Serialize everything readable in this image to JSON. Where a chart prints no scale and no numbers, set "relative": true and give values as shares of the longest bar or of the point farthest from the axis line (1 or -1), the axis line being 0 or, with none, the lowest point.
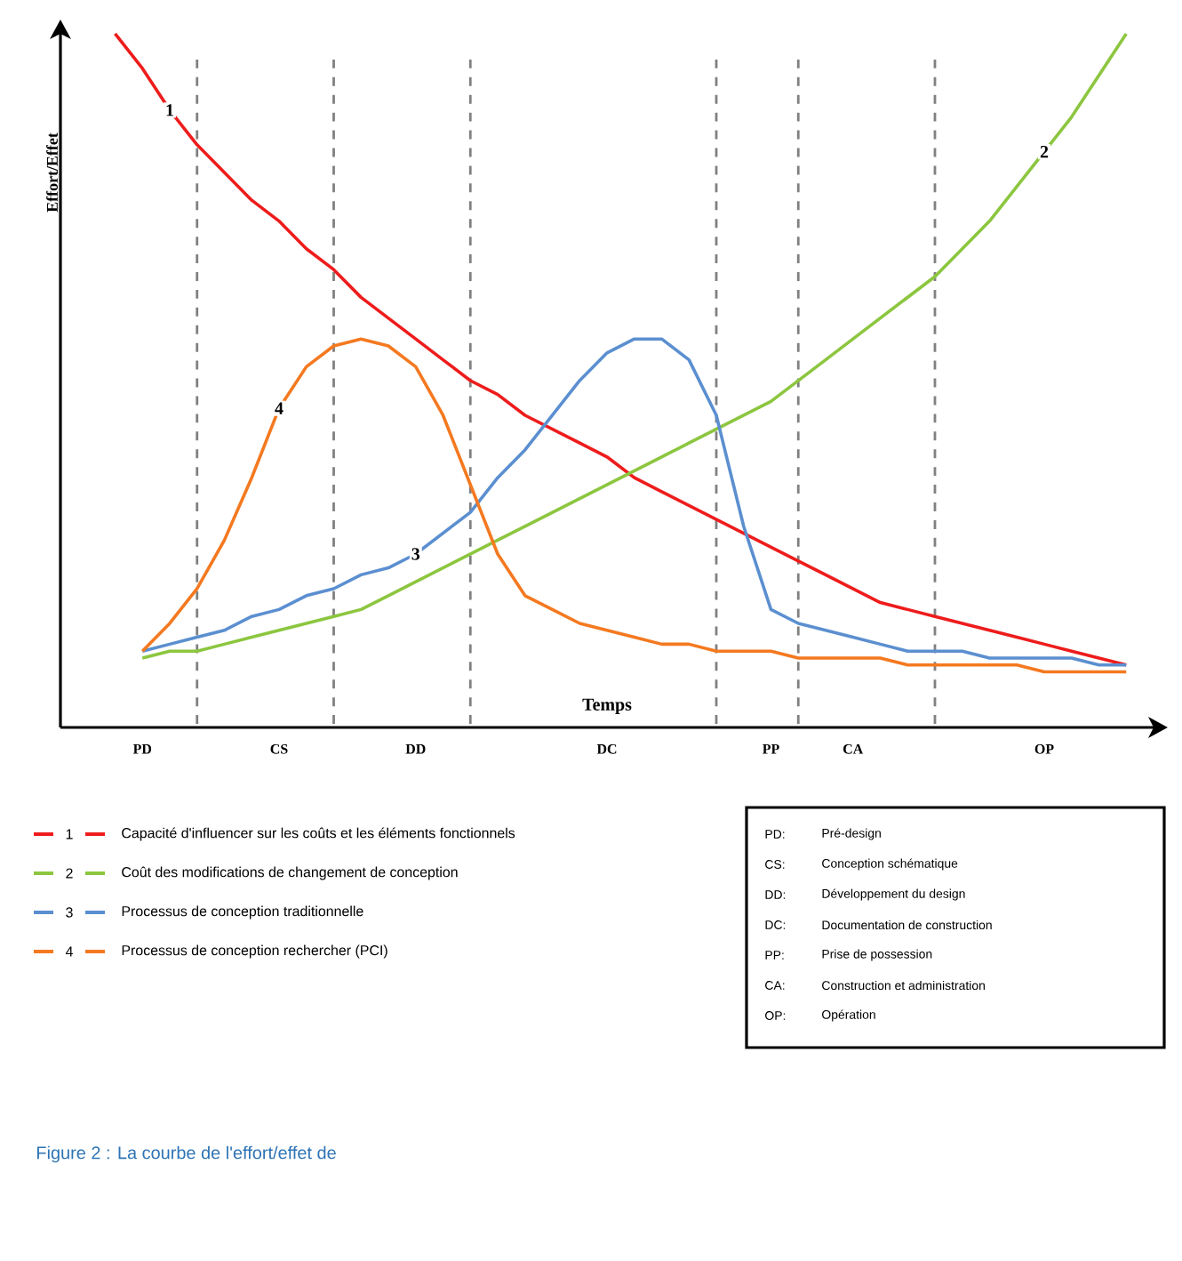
{
  "chart_data": {
    "type": "line",
    "relative": true,
    "xlabel": "Temps",
    "ylabel": "Effort/Effet",
    "categories": [
      null,
      "PD",
      null,
      null,
      null,
      null,
      "CS",
      null,
      null,
      null,
      null,
      "DD",
      null,
      null,
      null,
      null,
      null,
      null,
      "DC",
      null,
      null,
      null,
      null,
      null,
      "PP",
      null,
      null,
      "CA",
      null,
      null,
      null,
      null,
      null,
      null,
      "OP",
      null,
      null,
      null
    ],
    "legend": "bottom",
    "marker": "none",
    "line_style": "solid",
    "grid": "x",
    "series": [
      {
        "name": "Capacité d'influencer sur les coûts et les éléments fonctionnels",
        "color": "#ee1c1c",
        "values": [
          1.0,
          0.95,
          0.89,
          0.84,
          0.8,
          0.76,
          0.73,
          0.69,
          0.66,
          0.62,
          0.59,
          0.56,
          0.53,
          0.5,
          0.48,
          0.45,
          0.43,
          0.41,
          0.39,
          0.36,
          0.34,
          0.32,
          0.3,
          0.28,
          0.26,
          0.24,
          0.22,
          0.2,
          0.18,
          0.17,
          0.16,
          0.15,
          0.14,
          0.13,
          0.12,
          0.11,
          0.1,
          0.09
        ]
      },
      {
        "name": "Coût des modifications de changement de conception",
        "color": "#8cc63f",
        "values": [
          null,
          0.1,
          0.11,
          0.11,
          0.12,
          0.13,
          0.14,
          0.15,
          0.16,
          0.17,
          0.19,
          0.21,
          0.23,
          0.25,
          0.27,
          0.29,
          0.31,
          0.33,
          0.35,
          0.37,
          0.39,
          0.41,
          0.43,
          0.45,
          0.47,
          0.5,
          0.53,
          0.56,
          0.59,
          0.62,
          0.65,
          0.69,
          0.73,
          0.78,
          0.83,
          0.88,
          0.94,
          1.0
        ]
      },
      {
        "name": "Processus de conception traditionnelle",
        "color": "#5b8fd0",
        "values": [
          null,
          0.11,
          0.12,
          0.13,
          0.14,
          0.16,
          0.17,
          0.19,
          0.2,
          0.22,
          0.23,
          0.25,
          0.28,
          0.31,
          0.36,
          0.4,
          0.45,
          0.5,
          0.54,
          0.56,
          0.56,
          0.53,
          0.45,
          0.29,
          0.17,
          0.15,
          0.14,
          0.13,
          0.12,
          0.11,
          0.11,
          0.11,
          0.1,
          0.1,
          0.1,
          0.1,
          0.09,
          0.09
        ]
      },
      {
        "name": "Processus de conception rechercher (PCI)",
        "color": "#f47920",
        "values": [
          null,
          0.11,
          0.15,
          0.2,
          0.27,
          0.36,
          0.46,
          0.52,
          0.55,
          0.56,
          0.55,
          0.52,
          0.45,
          0.35,
          0.25,
          0.19,
          0.17,
          0.15,
          0.14,
          0.13,
          0.12,
          0.12,
          0.11,
          0.11,
          0.11,
          0.1,
          0.1,
          0.1,
          0.1,
          0.09,
          0.09,
          0.09,
          0.09,
          0.09,
          0.08,
          0.08,
          0.08,
          0.08
        ]
      }
    ],
    "annotations": [
      "1",
      "2",
      "3",
      "4",
      "PD:",
      "Pré-design",
      "CS:",
      "Conception schématique",
      "DD:",
      "Développement du design",
      "DC:",
      "Documentation de construction",
      "PP:",
      "Prise de possession",
      "CA:",
      "Construction et administration",
      "OP:",
      "Opération",
      "Figure 2 : La courbe de l'effort/effet de"
    ]
  }
}
